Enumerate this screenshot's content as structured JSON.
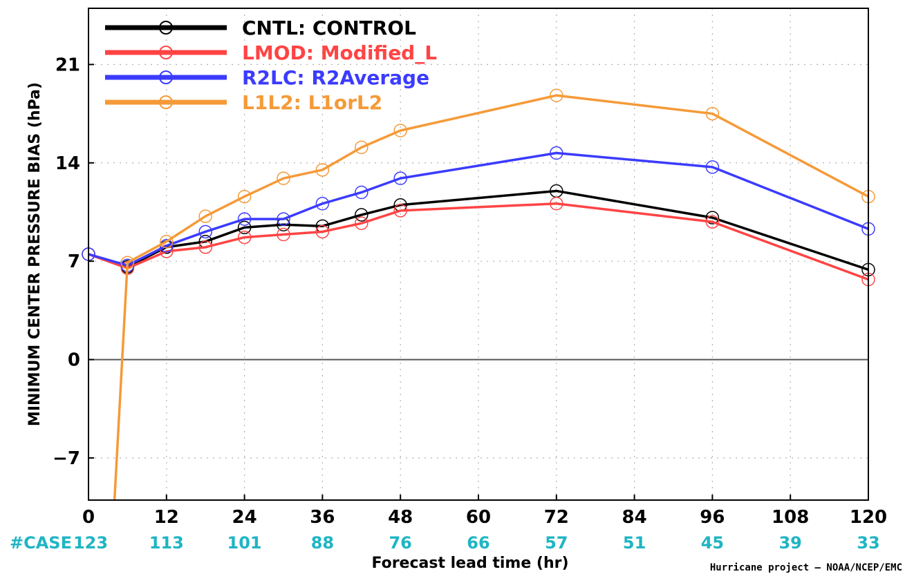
{
  "chart_data": {
    "type": "line",
    "xlabel": "Forecast lead time (hr)",
    "ylabel": "MINIMUM CENTER PRESSURE BIAS (hPa)",
    "xlim": [
      0,
      120
    ],
    "ylim": [
      -10,
      25
    ],
    "x_ticks": [
      "0",
      "12",
      "24",
      "36",
      "48",
      "60",
      "72",
      "84",
      "96",
      "108",
      "120"
    ],
    "y_ticks": [
      "21",
      "14",
      "7",
      "0",
      "−7"
    ],
    "grid": "dotted",
    "zero_line": true,
    "legend_placement": "top-left",
    "case_label": "#CASE",
    "case_counts": [
      {
        "x": 0,
        "n": "123"
      },
      {
        "x": 12,
        "n": "113"
      },
      {
        "x": 24,
        "n": "101"
      },
      {
        "x": 36,
        "n": "88"
      },
      {
        "x": 48,
        "n": "76"
      },
      {
        "x": 60,
        "n": "66"
      },
      {
        "x": 72,
        "n": "57"
      },
      {
        "x": 84,
        "n": "51"
      },
      {
        "x": 96,
        "n": "45"
      },
      {
        "x": 108,
        "n": "39"
      },
      {
        "x": 120,
        "n": "33"
      }
    ],
    "series": [
      {
        "name": "CNTL: CONTROL",
        "color": "#000000",
        "x": [
          0,
          6,
          12,
          18,
          24,
          30,
          36,
          42,
          48,
          72,
          96,
          120
        ],
        "y": [
          7.5,
          6.6,
          8.0,
          8.4,
          9.4,
          9.6,
          9.5,
          10.3,
          11.0,
          12.0,
          10.1,
          6.4
        ]
      },
      {
        "name": "LMOD: Modified_L",
        "color": "#ff4444",
        "x": [
          0,
          6,
          12,
          18,
          24,
          30,
          36,
          42,
          48,
          72,
          96,
          120
        ],
        "y": [
          7.5,
          6.5,
          7.7,
          8.0,
          8.7,
          8.9,
          9.1,
          9.7,
          10.6,
          11.1,
          9.8,
          5.7
        ]
      },
      {
        "name": "R2LC: R2Average",
        "color": "#3b3bff",
        "x": [
          0,
          6,
          12,
          18,
          24,
          30,
          36,
          42,
          48,
          72,
          96,
          120
        ],
        "y": [
          7.5,
          6.7,
          8.1,
          9.1,
          10.0,
          10.0,
          11.1,
          11.9,
          12.9,
          14.7,
          13.7,
          9.3
        ]
      },
      {
        "name": "L1L2: L1orL2",
        "color": "#f59a38",
        "x": [
          4,
          6,
          12,
          18,
          24,
          30,
          36,
          42,
          48,
          72,
          96,
          120
        ],
        "y": [
          -10,
          6.9,
          8.4,
          10.2,
          11.6,
          12.9,
          13.5,
          15.1,
          16.3,
          18.8,
          17.5,
          11.6
        ],
        "markers_from_index": 1
      }
    ]
  },
  "credit": "Hurricane project — NOAA/NCEP/EMC"
}
